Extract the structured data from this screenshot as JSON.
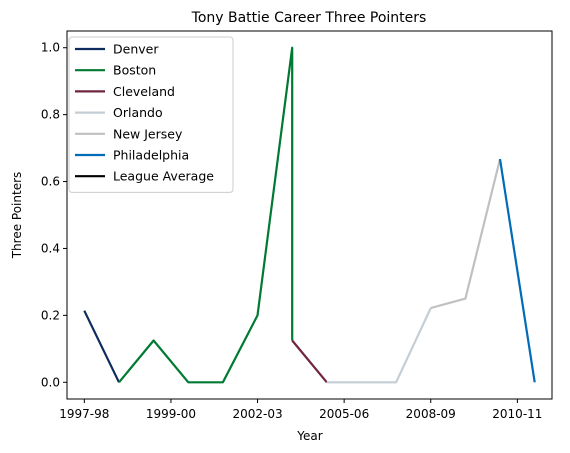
{
  "chart_data": {
    "type": "line",
    "title": "Tony Battie Career Three Pointers",
    "xlabel": "Year",
    "ylabel": "Three Pointers",
    "x_ticks": [
      "1997-98",
      "1999-00",
      "2002-03",
      "2005-06",
      "2008-09",
      "2010-11"
    ],
    "x_tick_index": [
      0,
      2.5,
      5,
      7.5,
      10,
      12.5
    ],
    "y_ticks": [
      "0.0",
      "0.2",
      "0.4",
      "0.6",
      "0.8",
      "1.0"
    ],
    "ylim": [
      -0.05,
      1.05
    ],
    "xlim": [
      -0.5,
      13.5
    ],
    "legend_position": "upper left",
    "series": [
      {
        "name": "Denver",
        "color": "#0d2b5f",
        "points": [
          [
            0,
            0.214
          ],
          [
            1,
            0.0
          ]
        ]
      },
      {
        "name": "Boston",
        "color": "#007a33",
        "points": [
          [
            1,
            0.0
          ],
          [
            2,
            0.125
          ],
          [
            3,
            0.0
          ],
          [
            4,
            0.0
          ],
          [
            5,
            0.2
          ],
          [
            6,
            1.0
          ],
          [
            6,
            0.125
          ]
        ]
      },
      {
        "name": "Cleveland",
        "color": "#6f263d",
        "points": [
          [
            6,
            0.125
          ],
          [
            7,
            0.0
          ]
        ]
      },
      {
        "name": "Orlando",
        "color": "#c4ced4",
        "points": [
          [
            7,
            0.0
          ],
          [
            8,
            0.0
          ],
          [
            9,
            0.0
          ],
          [
            10,
            0.222
          ]
        ]
      },
      {
        "name": "New Jersey",
        "color": "#bec0c2",
        "points": [
          [
            10,
            0.222
          ],
          [
            11,
            0.25
          ],
          [
            12,
            0.667
          ]
        ]
      },
      {
        "name": "Philadelphia",
        "color": "#006bb6",
        "points": [
          [
            12,
            0.667
          ],
          [
            13,
            0.0
          ]
        ]
      },
      {
        "name": "League Average",
        "color": "#000000",
        "points": []
      }
    ]
  }
}
